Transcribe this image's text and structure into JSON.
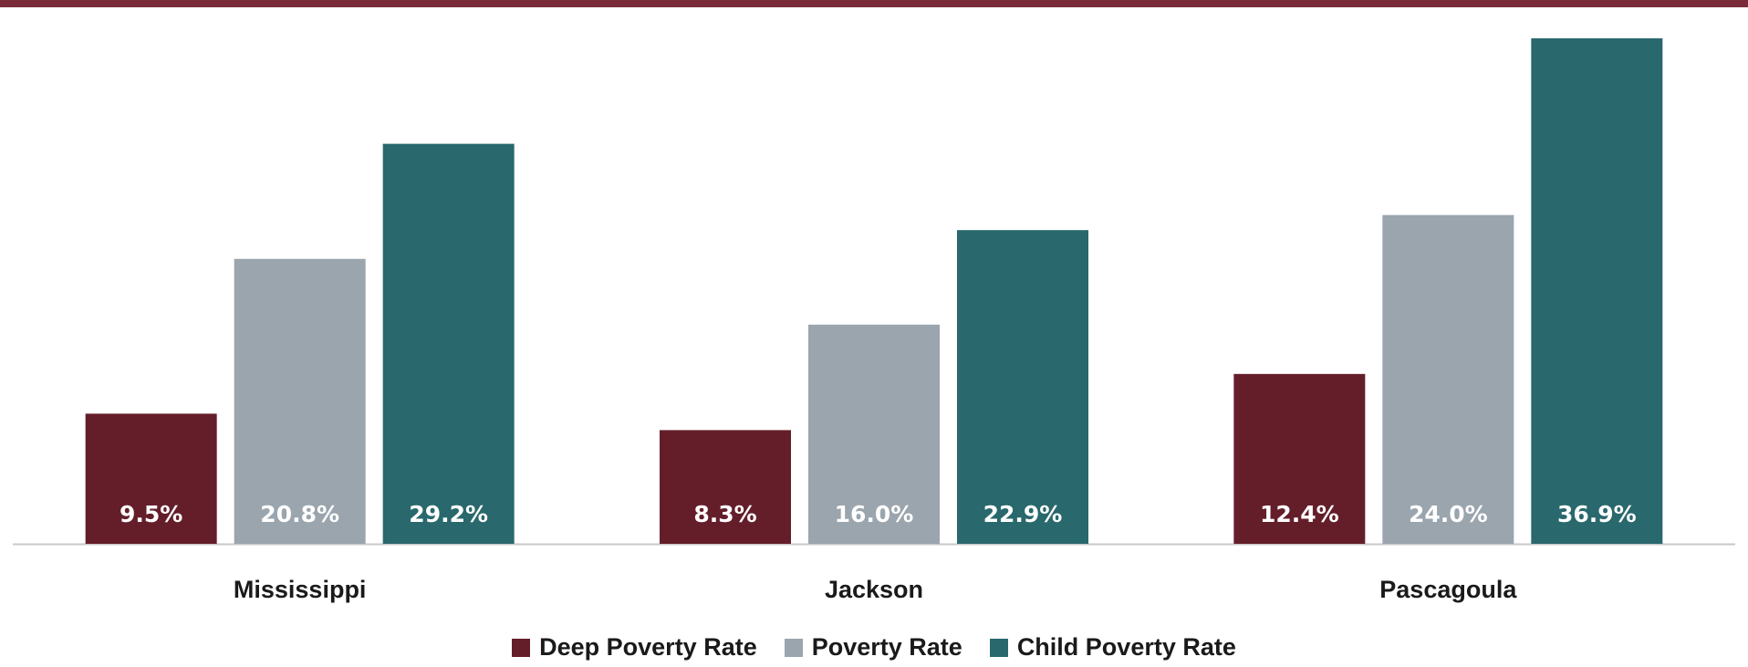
{
  "colors": {
    "top_band": "#7a2b3a",
    "axis": "#c8c8c8"
  },
  "chart_data": {
    "type": "bar",
    "title": "",
    "xlabel": "",
    "ylabel": "",
    "ylim": [
      0,
      38
    ],
    "grid": false,
    "legend_position": "bottom",
    "categories": [
      "Mississippi",
      "Jackson",
      "Pascagoula"
    ],
    "series": [
      {
        "name": "Deep Poverty Rate",
        "color": "#641e2a",
        "values": [
          9.5,
          8.3,
          12.4
        ],
        "labels": [
          "9.5%",
          "8.3%",
          "12.4%"
        ]
      },
      {
        "name": "Poverty Rate",
        "color": "#9aa5ae",
        "values": [
          20.8,
          16.0,
          24.0
        ],
        "labels": [
          "20.8%",
          "16.0%",
          "24.0%"
        ]
      },
      {
        "name": "Child Poverty Rate",
        "color": "#29686c",
        "values": [
          29.2,
          22.9,
          36.9
        ],
        "labels": [
          "29.2%",
          "22.9%",
          "36.9%"
        ]
      }
    ]
  }
}
